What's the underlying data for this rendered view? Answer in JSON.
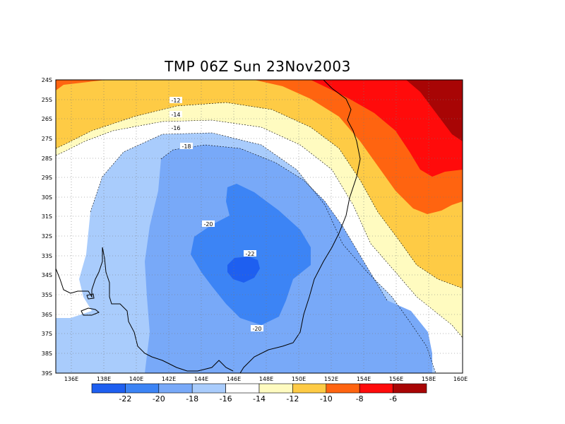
{
  "title": "TMP 06Z Sun 23Nov2003",
  "axes": {
    "lat_ticks": [
      "24S",
      "25S",
      "26S",
      "27S",
      "28S",
      "29S",
      "30S",
      "31S",
      "32S",
      "33S",
      "34S",
      "35S",
      "36S",
      "37S",
      "38S",
      "39S"
    ],
    "lon_ticks": [
      "136E",
      "138E",
      "140E",
      "142E",
      "144E",
      "146E",
      "148E",
      "150E",
      "152E",
      "154E",
      "156E",
      "158E",
      "160E"
    ],
    "lon_range": [
      135,
      160
    ],
    "lat_range": [
      -39,
      -24
    ],
    "grid": "dotted"
  },
  "contour_labels": [
    "-12",
    "-14",
    "-16",
    "-18",
    "-20",
    "-22",
    "-20"
  ],
  "colorbar": {
    "labels": [
      "-22",
      "-20",
      "-18",
      "-16",
      "-14",
      "-12",
      "-10",
      "-8",
      "-6"
    ],
    "colors": [
      "#1e5ff0",
      "#3c84f5",
      "#78a9f8",
      "#a9ccfc",
      "#ffffff",
      "#fffbc0",
      "#fecb45",
      "#ff6410",
      "#ff0b0b",
      "#a80505"
    ]
  },
  "palette": {
    "lt_minus22": "#1e5ff0",
    "m22_m20": "#3c84f5",
    "m20_m18": "#78a9f8",
    "m18_m16": "#a9ccfc",
    "m16_m14": "#ffffff",
    "m14_m12": "#fffbc0",
    "m12_m10": "#fecb45",
    "m10_m8": "#ff6410",
    "m8_m6": "#ff0b0b",
    "gt_minus6": "#a80505"
  }
}
